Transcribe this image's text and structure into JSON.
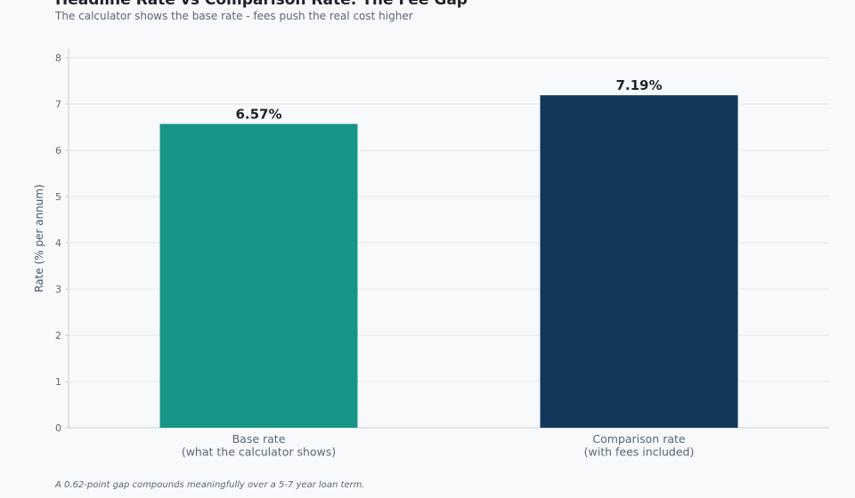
{
  "title": "Headline Rate vs Comparison Rate: The Fee Gap",
  "subtitle": "The calculator shows the base rate - fees push the real cost higher",
  "footnote": "A 0.62-point gap compounds meaningfully over a 5-7 year loan term.",
  "colors": {
    "background": "#f7f9fb",
    "grid": "#e3e8ee",
    "axis": "#c9d1da",
    "base": "#179586",
    "comparison": "#10385a"
  },
  "chart_data": {
    "type": "bar",
    "title": "Headline Rate vs Comparison Rate: The Fee Gap",
    "subtitle": "The calculator shows the base rate - fees push the real cost higher",
    "xlabel": "",
    "ylabel": "Rate (% per annum)",
    "ylim": [
      0,
      8
    ],
    "yticks": [
      0,
      1,
      2,
      3,
      4,
      5,
      6,
      7,
      8
    ],
    "grid": true,
    "categories": [
      [
        "Base rate",
        "(what the calculator shows)"
      ],
      [
        "Comparison rate",
        "(with fees included)"
      ]
    ],
    "values": [
      6.57,
      7.19
    ],
    "value_labels": [
      "6.57%",
      "7.19%"
    ],
    "bar_colors": [
      "#179586",
      "#10385a"
    ]
  }
}
